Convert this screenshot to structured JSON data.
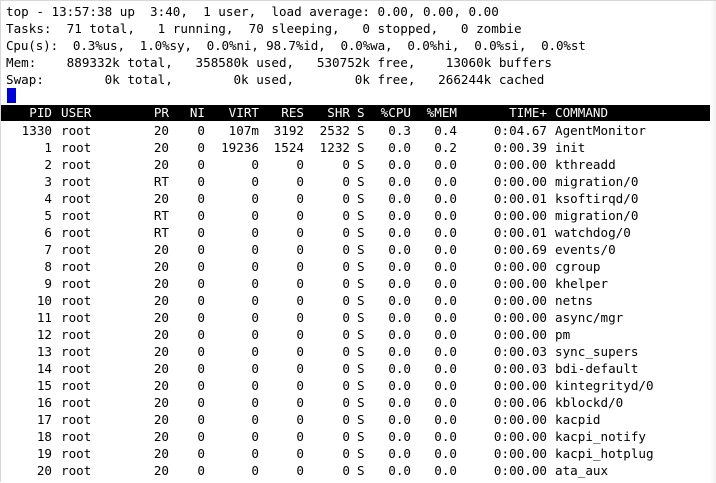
{
  "summary": {
    "line1": "top - 13:57:38 up  3:40,  1 user,  load average: 0.00, 0.00, 0.00",
    "line2": "Tasks:  71 total,   1 running,  70 sleeping,   0 stopped,   0 zombie",
    "line3": "Cpu(s):  0.3%us,  1.0%sy,  0.0%ni, 98.7%id,  0.0%wa,  0.0%hi,  0.0%si,  0.0%st",
    "line4": "Mem:    889332k total,   358580k used,   530752k free,    13060k buffers",
    "line5": "Swap:        0k total,        0k used,        0k free,   266244k cached"
  },
  "columns": [
    {
      "key": "pid",
      "label": "PID"
    },
    {
      "key": "user",
      "label": "USER"
    },
    {
      "key": "pr",
      "label": "PR"
    },
    {
      "key": "ni",
      "label": "NI"
    },
    {
      "key": "virt",
      "label": "VIRT"
    },
    {
      "key": "res",
      "label": "RES"
    },
    {
      "key": "shr",
      "label": "SHR"
    },
    {
      "key": "s",
      "label": "S"
    },
    {
      "key": "cpu",
      "label": "%CPU"
    },
    {
      "key": "mem",
      "label": "%MEM"
    },
    {
      "key": "time",
      "label": "TIME+"
    },
    {
      "key": "command",
      "label": "COMMAND"
    }
  ],
  "processes": [
    {
      "pid": "1330",
      "user": "root",
      "pr": "20",
      "ni": "0",
      "virt": "107m",
      "res": "3192",
      "shr": "2532",
      "s": "S",
      "cpu": "0.3",
      "mem": "0.4",
      "time": "0:04.67",
      "command": "AgentMonitor"
    },
    {
      "pid": "1",
      "user": "root",
      "pr": "20",
      "ni": "0",
      "virt": "19236",
      "res": "1524",
      "shr": "1232",
      "s": "S",
      "cpu": "0.0",
      "mem": "0.2",
      "time": "0:00.39",
      "command": "init"
    },
    {
      "pid": "2",
      "user": "root",
      "pr": "20",
      "ni": "0",
      "virt": "0",
      "res": "0",
      "shr": "0",
      "s": "S",
      "cpu": "0.0",
      "mem": "0.0",
      "time": "0:00.00",
      "command": "kthreadd"
    },
    {
      "pid": "3",
      "user": "root",
      "pr": "RT",
      "ni": "0",
      "virt": "0",
      "res": "0",
      "shr": "0",
      "s": "S",
      "cpu": "0.0",
      "mem": "0.0",
      "time": "0:00.00",
      "command": "migration/0"
    },
    {
      "pid": "4",
      "user": "root",
      "pr": "20",
      "ni": "0",
      "virt": "0",
      "res": "0",
      "shr": "0",
      "s": "S",
      "cpu": "0.0",
      "mem": "0.0",
      "time": "0:00.01",
      "command": "ksoftirqd/0"
    },
    {
      "pid": "5",
      "user": "root",
      "pr": "RT",
      "ni": "0",
      "virt": "0",
      "res": "0",
      "shr": "0",
      "s": "S",
      "cpu": "0.0",
      "mem": "0.0",
      "time": "0:00.00",
      "command": "migration/0"
    },
    {
      "pid": "6",
      "user": "root",
      "pr": "RT",
      "ni": "0",
      "virt": "0",
      "res": "0",
      "shr": "0",
      "s": "S",
      "cpu": "0.0",
      "mem": "0.0",
      "time": "0:00.01",
      "command": "watchdog/0"
    },
    {
      "pid": "7",
      "user": "root",
      "pr": "20",
      "ni": "0",
      "virt": "0",
      "res": "0",
      "shr": "0",
      "s": "S",
      "cpu": "0.0",
      "mem": "0.0",
      "time": "0:00.69",
      "command": "events/0"
    },
    {
      "pid": "8",
      "user": "root",
      "pr": "20",
      "ni": "0",
      "virt": "0",
      "res": "0",
      "shr": "0",
      "s": "S",
      "cpu": "0.0",
      "mem": "0.0",
      "time": "0:00.00",
      "command": "cgroup"
    },
    {
      "pid": "9",
      "user": "root",
      "pr": "20",
      "ni": "0",
      "virt": "0",
      "res": "0",
      "shr": "0",
      "s": "S",
      "cpu": "0.0",
      "mem": "0.0",
      "time": "0:00.00",
      "command": "khelper"
    },
    {
      "pid": "10",
      "user": "root",
      "pr": "20",
      "ni": "0",
      "virt": "0",
      "res": "0",
      "shr": "0",
      "s": "S",
      "cpu": "0.0",
      "mem": "0.0",
      "time": "0:00.00",
      "command": "netns"
    },
    {
      "pid": "11",
      "user": "root",
      "pr": "20",
      "ni": "0",
      "virt": "0",
      "res": "0",
      "shr": "0",
      "s": "S",
      "cpu": "0.0",
      "mem": "0.0",
      "time": "0:00.00",
      "command": "async/mgr"
    },
    {
      "pid": "12",
      "user": "root",
      "pr": "20",
      "ni": "0",
      "virt": "0",
      "res": "0",
      "shr": "0",
      "s": "S",
      "cpu": "0.0",
      "mem": "0.0",
      "time": "0:00.00",
      "command": "pm"
    },
    {
      "pid": "13",
      "user": "root",
      "pr": "20",
      "ni": "0",
      "virt": "0",
      "res": "0",
      "shr": "0",
      "s": "S",
      "cpu": "0.0",
      "mem": "0.0",
      "time": "0:00.03",
      "command": "sync_supers"
    },
    {
      "pid": "14",
      "user": "root",
      "pr": "20",
      "ni": "0",
      "virt": "0",
      "res": "0",
      "shr": "0",
      "s": "S",
      "cpu": "0.0",
      "mem": "0.0",
      "time": "0:00.03",
      "command": "bdi-default"
    },
    {
      "pid": "15",
      "user": "root",
      "pr": "20",
      "ni": "0",
      "virt": "0",
      "res": "0",
      "shr": "0",
      "s": "S",
      "cpu": "0.0",
      "mem": "0.0",
      "time": "0:00.00",
      "command": "kintegrityd/0"
    },
    {
      "pid": "16",
      "user": "root",
      "pr": "20",
      "ni": "0",
      "virt": "0",
      "res": "0",
      "shr": "0",
      "s": "S",
      "cpu": "0.0",
      "mem": "0.0",
      "time": "0:00.06",
      "command": "kblockd/0"
    },
    {
      "pid": "17",
      "user": "root",
      "pr": "20",
      "ni": "0",
      "virt": "0",
      "res": "0",
      "shr": "0",
      "s": "S",
      "cpu": "0.0",
      "mem": "0.0",
      "time": "0:00.00",
      "command": "kacpid"
    },
    {
      "pid": "18",
      "user": "root",
      "pr": "20",
      "ni": "0",
      "virt": "0",
      "res": "0",
      "shr": "0",
      "s": "S",
      "cpu": "0.0",
      "mem": "0.0",
      "time": "0:00.00",
      "command": "kacpi_notify"
    },
    {
      "pid": "19",
      "user": "root",
      "pr": "20",
      "ni": "0",
      "virt": "0",
      "res": "0",
      "shr": "0",
      "s": "S",
      "cpu": "0.0",
      "mem": "0.0",
      "time": "0:00.00",
      "command": "kacpi_hotplug"
    },
    {
      "pid": "20",
      "user": "root",
      "pr": "20",
      "ni": "0",
      "virt": "0",
      "res": "0",
      "shr": "0",
      "s": "S",
      "cpu": "0.0",
      "mem": "0.0",
      "time": "0:00.00",
      "command": "ata_aux"
    }
  ],
  "colors": {
    "background": "#ffffff",
    "text": "#000000",
    "header_bar": "#000000",
    "header_text": "#ffffff",
    "cursor": "#0000d8"
  }
}
